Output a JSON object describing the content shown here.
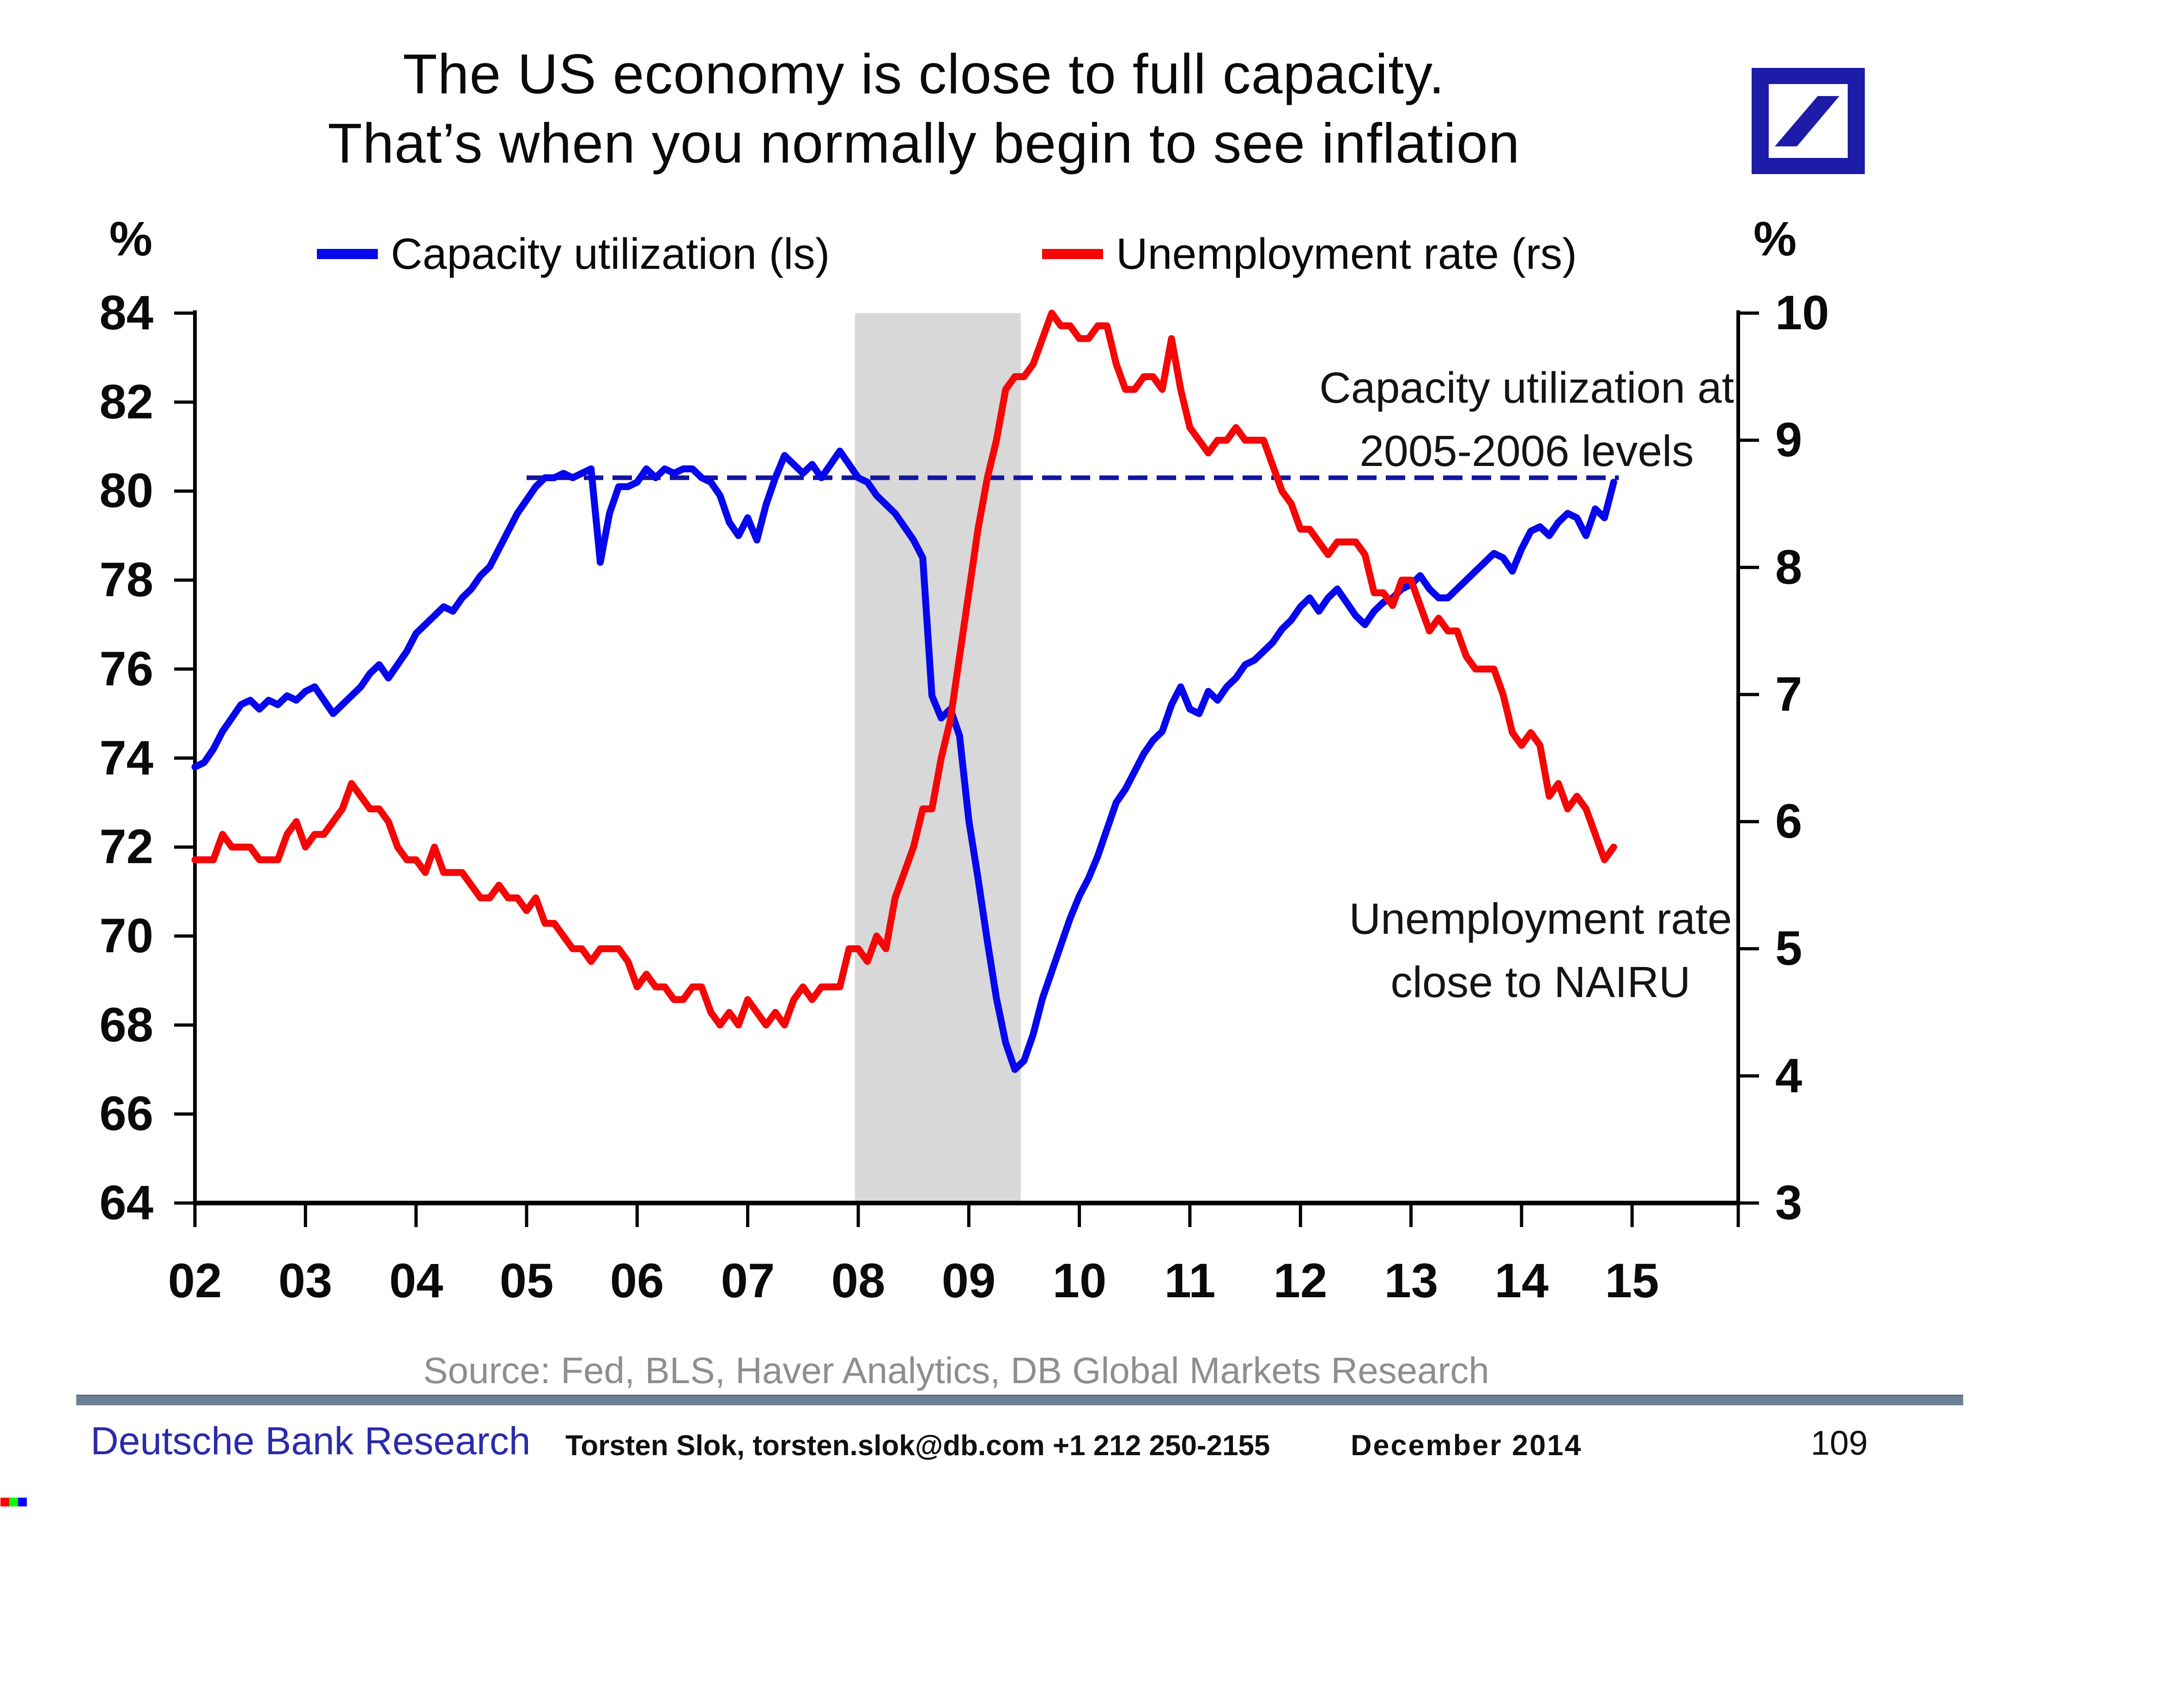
{
  "title": {
    "line1": "The US economy is close to full capacity.",
    "line2": "That’s when you normally begin to see inflation"
  },
  "legend": {
    "items": [
      {
        "label": "Capacity utilization (ls)",
        "color": "#0707ee"
      },
      {
        "label": "Unemployment rate (rs)",
        "color": "#f50707"
      }
    ]
  },
  "left_axis": {
    "unit": "%",
    "ticks": [
      84,
      82,
      80,
      78,
      76,
      74,
      72,
      70,
      68,
      66,
      64
    ]
  },
  "right_axis": {
    "unit": "%",
    "ticks": [
      10,
      9,
      8,
      7,
      6,
      5,
      4,
      3
    ]
  },
  "x_axis": {
    "labels": [
      "02",
      "03",
      "04",
      "05",
      "06",
      "07",
      "08",
      "09",
      "10",
      "11",
      "12",
      "13",
      "14",
      "15"
    ]
  },
  "annotations": {
    "capacity": {
      "line1": "Capacity utilization at",
      "line2": "2005-2006 levels"
    },
    "nairu": {
      "line1": "Unemployment rate",
      "line2": "close to NAIRU"
    }
  },
  "source": {
    "text": "Source: Fed, BLS, Haver Analytics, DB Global Markets Research"
  },
  "footer": {
    "brand": "Deutsche Bank Research",
    "contact": "Torsten Slok, torsten.slok@db.com  +1 212 250-2155",
    "date": "December 2014",
    "page": "109"
  },
  "colors": {
    "line_blue": "#0707ee",
    "line_red": "#f50707",
    "dashed_navy": "#1414a0",
    "recession_band": "#d8d8d8",
    "axis_black": "#000000",
    "divider": "#6d8196",
    "brand_text": "#2b2ba8",
    "source_text": "#8e8e8e",
    "logo_navy": "#1c1ca8",
    "artifact_rgb": [
      "#ff0000",
      "#00ff00",
      "#0000ff"
    ]
  },
  "chart_data": {
    "type": "line",
    "title": "The US economy is close to full capacity. That’s when you normally begin to see inflation",
    "x_start_year": 2002.0,
    "x_step_months": 1,
    "x_range": [
      2002.0,
      2015.96
    ],
    "x_tick_years": [
      2002,
      2003,
      2004,
      2005,
      2006,
      2007,
      2008,
      2009,
      2010,
      2011,
      2012,
      2013,
      2014,
      2015
    ],
    "left_ylim": [
      64,
      84
    ],
    "right_ylim": [
      3,
      10
    ],
    "grid": false,
    "legend_position": "top",
    "recession_band": {
      "x0": 2007.97,
      "x1": 2009.47
    },
    "reference_line": {
      "axis": "left",
      "value": 80.3,
      "x0": 2005.0,
      "x1": 2014.88,
      "style": "dashed",
      "label": "Capacity utilization at 2005-2006 levels"
    },
    "series": [
      {
        "name": "Capacity utilization (ls)",
        "axis": "left",
        "color": "#0707ee",
        "values": [
          73.8,
          73.9,
          74.2,
          74.6,
          74.9,
          75.2,
          75.3,
          75.1,
          75.3,
          75.2,
          75.4,
          75.3,
          75.5,
          75.6,
          75.3,
          75.0,
          75.2,
          75.4,
          75.6,
          75.9,
          76.1,
          75.8,
          76.1,
          76.4,
          76.8,
          77.0,
          77.2,
          77.4,
          77.3,
          77.6,
          77.8,
          78.1,
          78.3,
          78.7,
          79.1,
          79.5,
          79.8,
          80.1,
          80.3,
          80.3,
          80.4,
          80.3,
          80.4,
          80.5,
          78.4,
          79.5,
          80.1,
          80.1,
          80.2,
          80.5,
          80.3,
          80.5,
          80.4,
          80.5,
          80.5,
          80.3,
          80.2,
          79.9,
          79.3,
          79.0,
          79.4,
          78.9,
          79.7,
          80.3,
          80.8,
          80.6,
          80.4,
          80.6,
          80.3,
          80.6,
          80.9,
          80.6,
          80.3,
          80.2,
          79.9,
          79.7,
          79.5,
          79.2,
          78.9,
          78.5,
          75.4,
          74.9,
          75.1,
          74.5,
          72.6,
          71.3,
          69.9,
          68.6,
          67.6,
          67.0,
          67.2,
          67.8,
          68.6,
          69.2,
          69.8,
          70.4,
          70.9,
          71.3,
          71.8,
          72.4,
          73.0,
          73.3,
          73.7,
          74.1,
          74.4,
          74.6,
          75.2,
          75.6,
          75.1,
          75.0,
          75.5,
          75.3,
          75.6,
          75.8,
          76.1,
          76.2,
          76.4,
          76.6,
          76.9,
          77.1,
          77.4,
          77.6,
          77.3,
          77.6,
          77.8,
          77.5,
          77.2,
          77.0,
          77.3,
          77.5,
          77.6,
          77.8,
          77.9,
          78.1,
          77.8,
          77.6,
          77.6,
          77.8,
          78.0,
          78.2,
          78.4,
          78.6,
          78.5,
          78.2,
          78.7,
          79.1,
          79.2,
          79.0,
          79.3,
          79.5,
          79.4,
          79.0,
          79.6,
          79.4,
          80.2
        ]
      },
      {
        "name": "Unemployment rate (rs)",
        "axis": "right",
        "color": "#f50707",
        "values": [
          5.7,
          5.7,
          5.7,
          5.9,
          5.8,
          5.8,
          5.8,
          5.7,
          5.7,
          5.7,
          5.9,
          6.0,
          5.8,
          5.9,
          5.9,
          6.0,
          6.1,
          6.3,
          6.2,
          6.1,
          6.1,
          6.0,
          5.8,
          5.7,
          5.7,
          5.6,
          5.8,
          5.6,
          5.6,
          5.6,
          5.5,
          5.4,
          5.4,
          5.5,
          5.4,
          5.4,
          5.3,
          5.4,
          5.2,
          5.2,
          5.1,
          5.0,
          5.0,
          4.9,
          5.0,
          5.0,
          5.0,
          4.9,
          4.7,
          4.8,
          4.7,
          4.7,
          4.6,
          4.6,
          4.7,
          4.7,
          4.5,
          4.4,
          4.5,
          4.4,
          4.6,
          4.5,
          4.4,
          4.5,
          4.4,
          4.6,
          4.7,
          4.6,
          4.7,
          4.7,
          4.7,
          5.0,
          5.0,
          4.9,
          5.1,
          5.0,
          5.4,
          5.6,
          5.8,
          6.1,
          6.1,
          6.5,
          6.8,
          7.3,
          7.8,
          8.3,
          8.7,
          9.0,
          9.4,
          9.5,
          9.5,
          9.6,
          9.8,
          10.0,
          9.9,
          9.9,
          9.8,
          9.8,
          9.9,
          9.9,
          9.6,
          9.4,
          9.4,
          9.5,
          9.5,
          9.4,
          9.8,
          9.4,
          9.1,
          9.0,
          8.9,
          9.0,
          9.0,
          9.1,
          9.0,
          9.0,
          9.0,
          8.8,
          8.6,
          8.5,
          8.3,
          8.3,
          8.2,
          8.1,
          8.2,
          8.2,
          8.2,
          8.1,
          7.8,
          7.8,
          7.7,
          7.9,
          7.9,
          7.7,
          7.5,
          7.6,
          7.5,
          7.5,
          7.3,
          7.2,
          7.2,
          7.2,
          7.0,
          6.7,
          6.6,
          6.7,
          6.6,
          6.2,
          6.3,
          6.1,
          6.2,
          6.1,
          5.9,
          5.7,
          5.8
        ]
      }
    ]
  }
}
